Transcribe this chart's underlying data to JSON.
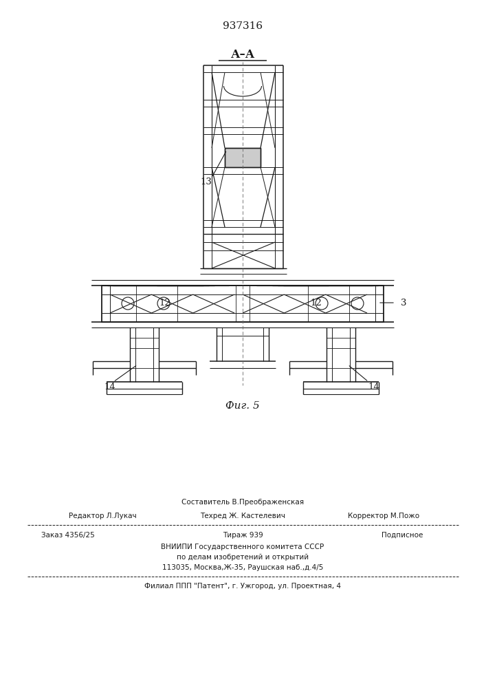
{
  "patent_number": "937316",
  "section_label": "А–А",
  "figure_label": "Фиг. 5",
  "bg_color": "#ffffff",
  "line_color": "#1a1a1a",
  "footer": {
    "line1_center": "Составитель В.Преображенская",
    "line2_left": "Редактор Л.Лукач",
    "line2_center": "Техред Ж. Кастелевич",
    "line2_right": "Корректор М.Пожо",
    "line3_left": "Заказ 4356/25",
    "line3_center": "Тираж 939",
    "line3_right": "Подписное",
    "line4": "ВНИИПИ Государственного комитета СССР",
    "line5": "по делам изобретений и открытий",
    "line6": "113035, Москва,Ж-35, Раушская наб.,д.4/5",
    "line7": "Филиал ППП \"Патент\", г. Ужгород, ул. Проектная, 4"
  }
}
